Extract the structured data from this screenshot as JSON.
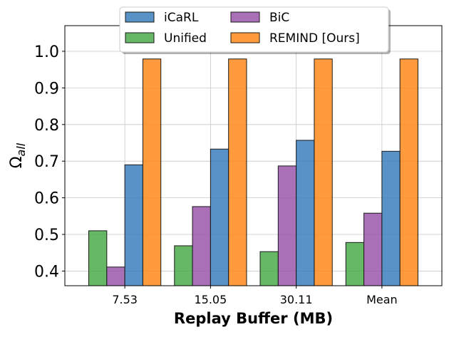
{
  "chart_data": {
    "type": "bar",
    "xlabel": "Replay Buffer (MB)",
    "ylabel_base": "Ω",
    "ylabel_sub": "all",
    "categories": [
      "7.53",
      "15.05",
      "30.11",
      "Mean"
    ],
    "ylim": [
      0.36,
      1.07
    ],
    "yticks": [
      "0.4",
      "0.5",
      "0.6",
      "0.7",
      "0.8",
      "0.9",
      "1.0"
    ],
    "grid": true,
    "legend_position": "top-center",
    "series": [
      {
        "name": "Unified",
        "color": "#4bab4b",
        "values": [
          0.51,
          0.469,
          0.453,
          0.478
        ]
      },
      {
        "name": "BiC",
        "color": "#9a57aa",
        "values": [
          0.411,
          0.576,
          0.687,
          0.558
        ]
      },
      {
        "name": "iCaRL",
        "color": "#3b7fbd",
        "values": [
          0.69,
          0.733,
          0.757,
          0.727
        ]
      },
      {
        "name": "REMIND [Ours]",
        "color": "#ff8a1a",
        "values": [
          0.979,
          0.979,
          0.979,
          0.979
        ]
      }
    ],
    "legend_order": [
      "iCaRL",
      "BiC",
      "Unified",
      "REMIND [Ours]"
    ]
  }
}
